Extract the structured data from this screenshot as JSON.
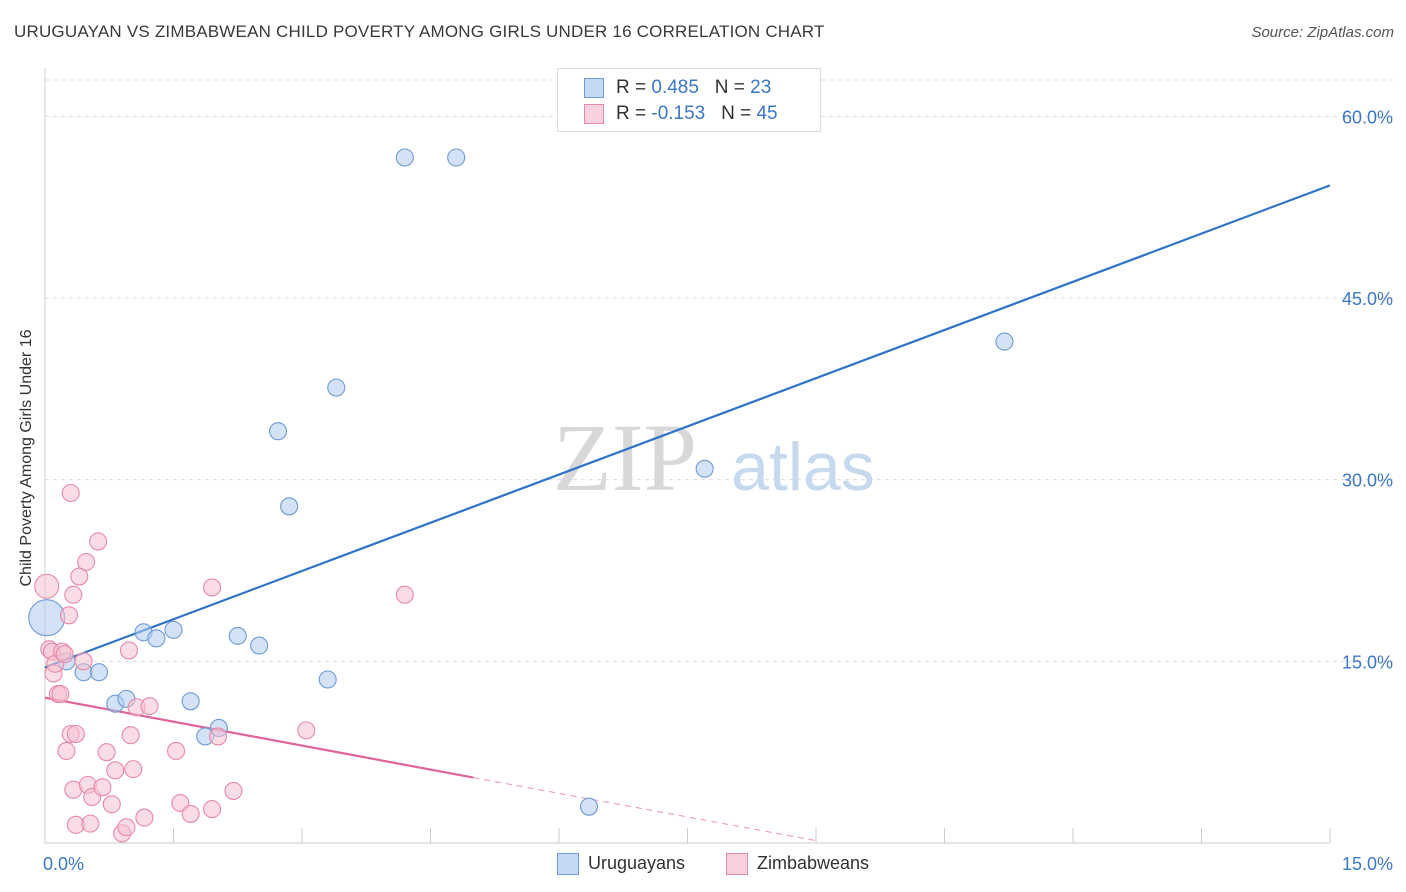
{
  "title": "URUGUAYAN VS ZIMBABWEAN CHILD POVERTY AMONG GIRLS UNDER 16 CORRELATION CHART",
  "source": "Source: ZipAtlas.com",
  "watermark": {
    "zip": "ZIP",
    "atlas": "atlas"
  },
  "legend": {
    "rows": [
      {
        "r_label": "R = ",
        "r_value": "0.485",
        "n_label": "N = ",
        "n_value": "23"
      },
      {
        "r_label": "R = ",
        "r_value": "-0.153",
        "n_label": "N = ",
        "n_value": "45"
      }
    ]
  },
  "colors": {
    "blue_fill": "#aecbf0",
    "blue_stroke": "#6f9bd6",
    "blue_line": "#2f72c9",
    "pink_fill": "#f6bfd0",
    "pink_stroke": "#e88aa7",
    "pink_line": "#e2649a",
    "tick_label": "#3b78c8",
    "grid": "#dcdcdc"
  },
  "chart_data": {
    "type": "scatter",
    "xlabel": "",
    "ylabel": "Child Poverty Among Girls Under 16",
    "xlim": [
      0,
      15
    ],
    "ylim": [
      0,
      63
    ],
    "x_tick_labels": [
      "0.0%",
      "15.0%"
    ],
    "y_ticks": [
      15,
      30,
      45,
      60
    ],
    "y_tick_labels": [
      "15.0%",
      "30.0%",
      "45.0%",
      "60.0%"
    ],
    "grid": true,
    "legend_position": "top-center",
    "series": [
      {
        "name": "Uruguayans",
        "points": [
          [
            0.02,
            18.6
          ],
          [
            0.25,
            15.0
          ],
          [
            0.45,
            14.1
          ],
          [
            0.63,
            14.1
          ],
          [
            0.82,
            11.5
          ],
          [
            0.95,
            11.9
          ],
          [
            1.15,
            17.4
          ],
          [
            1.3,
            16.9
          ],
          [
            1.5,
            17.6
          ],
          [
            1.7,
            11.7
          ],
          [
            1.87,
            8.8
          ],
          [
            2.03,
            9.5
          ],
          [
            2.25,
            17.1
          ],
          [
            2.5,
            16.3
          ],
          [
            2.72,
            34.0
          ],
          [
            2.85,
            27.8
          ],
          [
            3.3,
            13.5
          ],
          [
            3.4,
            37.6
          ],
          [
            4.2,
            56.6
          ],
          [
            4.8,
            56.6
          ],
          [
            6.35,
            3.0
          ],
          [
            7.7,
            30.9
          ],
          [
            11.2,
            41.4
          ]
        ],
        "trend": {
          "x": [
            0,
            15
          ],
          "y": [
            14.5,
            54.3
          ]
        }
      },
      {
        "name": "Zimbabweans",
        "points": [
          [
            0.02,
            21.2
          ],
          [
            0.05,
            16.0
          ],
          [
            0.08,
            15.8
          ],
          [
            0.1,
            14.0
          ],
          [
            0.12,
            14.8
          ],
          [
            0.15,
            12.3
          ],
          [
            0.18,
            12.3
          ],
          [
            0.2,
            15.8
          ],
          [
            0.23,
            15.6
          ],
          [
            0.28,
            18.8
          ],
          [
            0.3,
            28.9
          ],
          [
            0.33,
            20.5
          ],
          [
            0.4,
            22.0
          ],
          [
            0.45,
            15.0
          ],
          [
            0.48,
            23.2
          ],
          [
            0.25,
            7.6
          ],
          [
            0.3,
            9.0
          ],
          [
            0.36,
            9.0
          ],
          [
            0.33,
            4.4
          ],
          [
            0.36,
            1.5
          ],
          [
            0.5,
            4.8
          ],
          [
            0.53,
            1.6
          ],
          [
            0.55,
            3.8
          ],
          [
            0.62,
            24.9
          ],
          [
            0.67,
            4.6
          ],
          [
            0.72,
            7.5
          ],
          [
            0.78,
            3.2
          ],
          [
            0.82,
            6.0
          ],
          [
            0.9,
            0.8
          ],
          [
            0.95,
            1.3
          ],
          [
            0.98,
            15.9
          ],
          [
            1.0,
            8.9
          ],
          [
            1.03,
            6.1
          ],
          [
            1.07,
            11.2
          ],
          [
            1.16,
            2.1
          ],
          [
            1.22,
            11.3
          ],
          [
            1.53,
            7.6
          ],
          [
            1.58,
            3.3
          ],
          [
            1.7,
            2.4
          ],
          [
            1.95,
            21.1
          ],
          [
            1.95,
            2.8
          ],
          [
            2.02,
            8.8
          ],
          [
            2.2,
            4.3
          ],
          [
            3.05,
            9.3
          ],
          [
            4.2,
            20.5
          ]
        ],
        "trend": {
          "x": [
            0,
            5
          ],
          "y": [
            12.0,
            5.4
          ]
        },
        "trend_dashed": {
          "x": [
            5,
            9
          ],
          "y": [
            5.4,
            0.2
          ]
        }
      }
    ]
  },
  "bottom_legend": [
    {
      "label": "Uruguayans"
    },
    {
      "label": "Zimbabweans"
    }
  ]
}
